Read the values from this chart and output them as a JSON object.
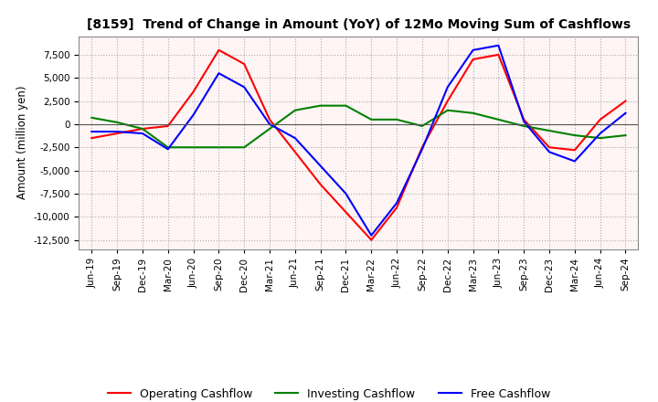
{
  "title": "[8159]  Trend of Change in Amount (YoY) of 12Mo Moving Sum of Cashflows",
  "ylabel": "Amount (million yen)",
  "ylim": [
    -13500,
    9500
  ],
  "yticks": [
    -12500,
    -10000,
    -7500,
    -5000,
    -2500,
    0,
    2500,
    5000,
    7500
  ],
  "plot_bg": "#fff5f5",
  "fig_bg": "#ffffff",
  "grid_color": "#aaaaaa",
  "labels": [
    "Jun-19",
    "Sep-19",
    "Dec-19",
    "Mar-20",
    "Jun-20",
    "Sep-20",
    "Dec-20",
    "Mar-21",
    "Jun-21",
    "Sep-21",
    "Dec-21",
    "Mar-22",
    "Jun-22",
    "Sep-22",
    "Dec-22",
    "Mar-23",
    "Jun-23",
    "Sep-23",
    "Dec-23",
    "Mar-24",
    "Jun-24",
    "Sep-24"
  ],
  "operating_cashflow": [
    -1500,
    -1000,
    -500,
    -200,
    3500,
    8000,
    6500,
    500,
    -3000,
    -6500,
    -9500,
    -12500,
    -9000,
    -2500,
    2500,
    7000,
    7500,
    500,
    -2500,
    -2800,
    500,
    2500
  ],
  "investing_cashflow": [
    700,
    200,
    -500,
    -2500,
    -2500,
    -2500,
    -2500,
    -500,
    1500,
    2000,
    2000,
    500,
    500,
    -200,
    1500,
    1200,
    500,
    -200,
    -700,
    -1200,
    -1500,
    -1200
  ],
  "free_cashflow": [
    -800,
    -800,
    -1000,
    -2700,
    1000,
    5500,
    4000,
    0,
    -1500,
    -4500,
    -7500,
    -12000,
    -8500,
    -2700,
    4000,
    8000,
    8500,
    300,
    -3000,
    -4000,
    -1000,
    1200
  ],
  "operating_color": "#ff0000",
  "investing_color": "#008000",
  "free_color": "#0000ff",
  "line_width": 1.5
}
